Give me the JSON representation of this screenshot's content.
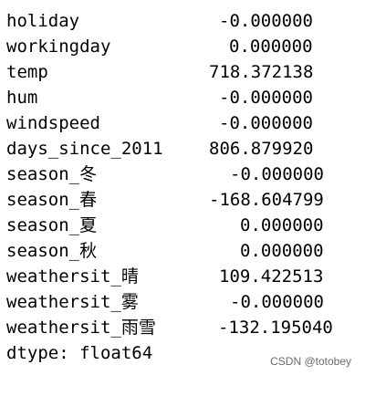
{
  "series": [
    {
      "name": "holiday",
      "value": "-0.000000"
    },
    {
      "name": "workingday",
      "value": "0.000000"
    },
    {
      "name": "temp",
      "value": "718.372138"
    },
    {
      "name": "hum",
      "value": "-0.000000"
    },
    {
      "name": "windspeed",
      "value": "-0.000000"
    },
    {
      "name": "days_since_2011",
      "value": "806.879920"
    },
    {
      "name": "season_冬",
      "value": "-0.000000"
    },
    {
      "name": "season_春",
      "value": "-168.604799"
    },
    {
      "name": "season_夏",
      "value": "0.000000"
    },
    {
      "name": "season_秋",
      "value": "0.000000"
    },
    {
      "name": "weathersit_晴",
      "value": "109.422513"
    },
    {
      "name": "weathersit_雾",
      "value": "-0.000000"
    },
    {
      "name": "weathersit_雨雪",
      "value": "-132.195040"
    }
  ],
  "dtype_line": "dtype: float64",
  "watermark": "CSDN @totobey"
}
